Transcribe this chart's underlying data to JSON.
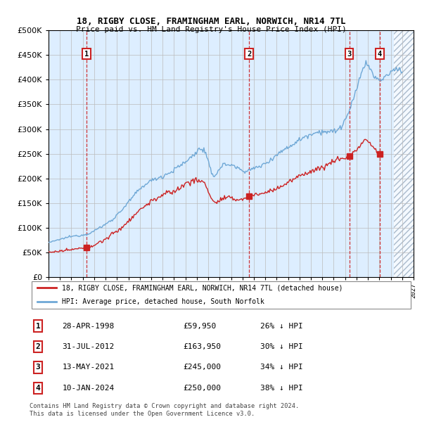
{
  "title": "18, RIGBY CLOSE, FRAMINGHAM EARL, NORWICH, NR14 7TL",
  "subtitle": "Price paid vs. HM Land Registry's House Price Index (HPI)",
  "legend_label_red": "18, RIGBY CLOSE, FRAMINGHAM EARL, NORWICH, NR14 7TL (detached house)",
  "legend_label_blue": "HPI: Average price, detached house, South Norfolk",
  "footer": "Contains HM Land Registry data © Crown copyright and database right 2024.\nThis data is licensed under the Open Government Licence v3.0.",
  "transactions": [
    {
      "num": 1,
      "date": "28-APR-1998",
      "price": 59950,
      "pct": "26%",
      "year_x": 1998.32
    },
    {
      "num": 2,
      "date": "31-JUL-2012",
      "price": 163950,
      "pct": "30%",
      "year_x": 2012.58
    },
    {
      "num": 3,
      "date": "13-MAY-2021",
      "price": 245000,
      "pct": "34%",
      "year_x": 2021.37
    },
    {
      "num": 4,
      "date": "10-JAN-2024",
      "price": 250000,
      "pct": "38%",
      "year_x": 2024.03
    }
  ],
  "ylim": [
    0,
    500000
  ],
  "xlim_start": 1995.0,
  "xlim_end": 2027.0,
  "hpi_color": "#6fa8d6",
  "price_color": "#cc2222",
  "bg_color": "#ddeeff",
  "hatch_color": "#aabbcc",
  "grid_color": "#bbbbbb",
  "hatch_start": 2025.3
}
